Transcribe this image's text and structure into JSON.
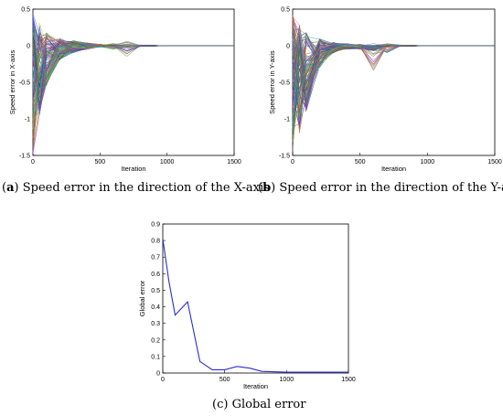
{
  "captions": {
    "a": {
      "letter": "a",
      "text": " Speed error in the direction of the X-axis"
    },
    "b": {
      "letter": "b",
      "text": " Speed error in the direction of the Y-axis"
    },
    "c": {
      "letter": "(c)",
      "text": " Global error"
    }
  },
  "chart_data": [
    {
      "type": "line",
      "ylabel": "Speed error in X-axis",
      "xlabel": "Iteration",
      "xlim": [
        0,
        1500
      ],
      "ylim": [
        -1.5,
        0.5
      ],
      "xticks": [
        0,
        500,
        1000,
        1500
      ],
      "yticks": [
        -1.5,
        -1,
        -0.5,
        0,
        0.5
      ],
      "series_count": 120,
      "x": [
        0,
        50,
        100,
        200,
        300,
        400,
        500,
        600,
        700,
        800,
        1000,
        1500
      ],
      "envelope_max": [
        0.47,
        0.32,
        0.18,
        0.1,
        0.07,
        0.04,
        0.02,
        0.03,
        0.08,
        0.01,
        0,
        0
      ],
      "envelope_min": [
        -1.5,
        -0.95,
        -0.55,
        -0.2,
        -0.1,
        -0.05,
        -0.02,
        -0.05,
        -0.15,
        -0.01,
        0,
        0
      ],
      "grid": false
    },
    {
      "type": "line",
      "ylabel": "Speed error in Y-axis",
      "xlabel": "Iteration",
      "xlim": [
        0,
        1500
      ],
      "ylim": [
        -1.5,
        0.5
      ],
      "xticks": [
        0,
        500,
        1000,
        1500
      ],
      "yticks": [
        -1.5,
        -1,
        -0.5,
        0,
        0.5
      ],
      "series_count": 120,
      "x": [
        0,
        50,
        100,
        200,
        300,
        400,
        500,
        600,
        700,
        800,
        1000,
        1500
      ],
      "envelope_max": [
        0.45,
        0.3,
        0.18,
        0.1,
        0.05,
        0.03,
        0.02,
        0.03,
        0.05,
        0.01,
        0,
        0
      ],
      "envelope_min": [
        -1.5,
        -1.2,
        -0.9,
        -0.3,
        -0.1,
        -0.05,
        -0.05,
        -0.35,
        -0.1,
        -0.01,
        0,
        0
      ],
      "grid": false
    },
    {
      "type": "line",
      "ylabel": "Global error",
      "xlabel": "Iteration",
      "xlim": [
        0,
        1500
      ],
      "ylim": [
        0,
        0.9
      ],
      "xticks": [
        0,
        500,
        1000,
        1500
      ],
      "yticks": [
        0,
        0.1,
        0.2,
        0.3,
        0.4,
        0.5,
        0.6,
        0.7,
        0.8,
        0.9
      ],
      "series": [
        {
          "color": "#2b2bd6",
          "x": [
            0,
            50,
            100,
            150,
            200,
            300,
            400,
            500,
            600,
            700,
            800,
            1000,
            1500
          ],
          "y": [
            0.81,
            0.55,
            0.35,
            0.39,
            0.43,
            0.07,
            0.02,
            0.02,
            0.04,
            0.03,
            0.01,
            0.005,
            0.005
          ]
        }
      ],
      "grid": false
    }
  ]
}
